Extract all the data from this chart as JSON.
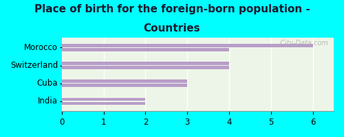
{
  "title_line1": "Place of birth for the foreign-born population -",
  "title_line2": "Countries",
  "categories": [
    "Morocco",
    "Switzerland",
    "Cuba",
    "India"
  ],
  "values1": [
    6,
    4,
    3,
    2
  ],
  "values2": [
    4,
    4,
    3,
    2
  ],
  "bar_color": "#b89dc8",
  "background_outer": "#00ffff",
  "background_inner": "#edf5e8",
  "xlim": [
    0,
    6.5
  ],
  "xticks": [
    0,
    1,
    2,
    3,
    4,
    5,
    6
  ],
  "title_fontsize": 11,
  "label_fontsize": 8.5,
  "tick_fontsize": 8.5,
  "watermark": "  City-Data.com"
}
